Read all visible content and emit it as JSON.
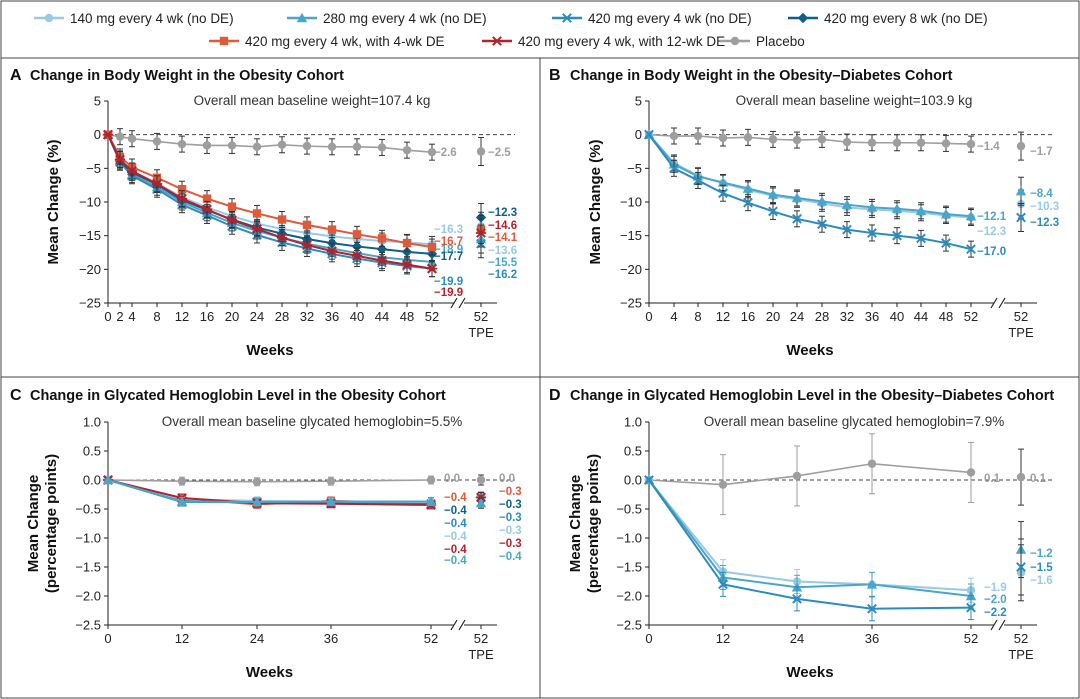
{
  "legend": {
    "series": [
      {
        "name": "140 mg every 4 wk (no DE)",
        "color": "#9ac9e6",
        "marker": "circle"
      },
      {
        "name": "280 mg every 4 wk (no DE)",
        "color": "#4aa6c9",
        "marker": "triangle"
      },
      {
        "name": "420 mg every 4 wk (no DE)",
        "color": "#2b8cbe",
        "marker": "x"
      },
      {
        "name": "420 mg every 8 wk (no DE)",
        "color": "#0e5f8a",
        "marker": "diamond"
      },
      {
        "name": "420 mg every 4 wk, with 4-wk DE",
        "color": "#dd5a3b",
        "marker": "square"
      },
      {
        "name": "420 mg every 4 wk, with 12-wk DE",
        "color": "#b2232e",
        "marker": "star"
      },
      {
        "name": "Placebo",
        "color": "#9e9e9e",
        "marker": "circle"
      }
    ]
  },
  "chart_data": [
    {
      "panel": "A",
      "title": "Change in Body Weight in the Obesity Cohort",
      "subtitle": "Overall mean baseline weight=107.4 kg",
      "type": "line",
      "xlabel": "Weeks",
      "ylabel": "Mean Change (%)",
      "x_ticks": [
        "0",
        "2",
        "4",
        "8",
        "12",
        "16",
        "20",
        "24",
        "28",
        "32",
        "36",
        "40",
        "44",
        "48",
        "52"
      ],
      "extra_tick": [
        "52",
        "TPE"
      ],
      "ylim": [
        -25,
        5
      ],
      "y_ticks": [
        "5",
        "0",
        "-5",
        "-10",
        "-15",
        "-20",
        "-25"
      ],
      "x": [
        0,
        2,
        4,
        8,
        12,
        16,
        20,
        24,
        28,
        32,
        36,
        40,
        44,
        48,
        52
      ],
      "series": [
        {
          "name": "Placebo",
          "values": [
            0,
            -0.3,
            -0.6,
            -1.0,
            -1.4,
            -1.6,
            -1.6,
            -1.8,
            -1.5,
            -1.7,
            -1.8,
            -1.8,
            -1.9,
            -2.3,
            -2.6
          ],
          "end_label": "−2.6",
          "tpe": -2.5,
          "tpe_label": "−2.5"
        },
        {
          "name": "140 mg every 4 wk (no DE)",
          "values": [
            0,
            -3.6,
            -5.4,
            -7.2,
            -9.3,
            -10.8,
            -12.1,
            -13.2,
            -14.0,
            -14.6,
            -15.1,
            -15.5,
            -15.8,
            -16.0,
            -16.3
          ],
          "end_label": "−16.3",
          "tpe": -13.6,
          "tpe_label": "−13.6"
        },
        {
          "name": "280 mg every 4 wk (no DE)",
          "values": [
            0,
            -3.9,
            -5.9,
            -7.8,
            -10.0,
            -11.6,
            -13.1,
            -14.3,
            -15.3,
            -16.2,
            -16.9,
            -17.6,
            -18.2,
            -18.6,
            -18.9
          ],
          "end_label": "−18.9",
          "tpe": -15.5,
          "tpe_label": "−15.5"
        },
        {
          "name": "420 mg every 4 wk (no DE)",
          "values": [
            0,
            -4.1,
            -6.1,
            -8.1,
            -10.4,
            -12.0,
            -13.6,
            -14.9,
            -16.0,
            -16.9,
            -17.7,
            -18.4,
            -19.0,
            -19.5,
            -19.9
          ],
          "end_label": "−19.9",
          "tpe": -16.2,
          "tpe_label": "−16.2"
        },
        {
          "name": "420 mg every 8 wk (no DE)",
          "values": [
            0,
            -3.9,
            -5.6,
            -7.4,
            -9.7,
            -11.2,
            -12.6,
            -13.8,
            -14.7,
            -15.5,
            -16.1,
            -16.6,
            -17.0,
            -17.4,
            -17.7
          ],
          "end_label": "−17.7",
          "tpe": -12.3,
          "tpe_label": "−12.3"
        },
        {
          "name": "420 mg every 4 wk, with 4-wk DE",
          "values": [
            0,
            -3.3,
            -4.8,
            -6.4,
            -8.1,
            -9.5,
            -10.7,
            -11.7,
            -12.6,
            -13.4,
            -14.1,
            -14.8,
            -15.4,
            -16.1,
            -16.7
          ],
          "end_label": "−16.7",
          "tpe": -14.1,
          "tpe_label": "−14.1"
        },
        {
          "name": "420 mg every 4 wk, with 12-wk DE",
          "values": [
            0,
            -3.7,
            -5.4,
            -7.3,
            -9.5,
            -11.1,
            -12.7,
            -14.0,
            -15.3,
            -16.4,
            -17.3,
            -18.0,
            -18.7,
            -19.3,
            -19.9
          ],
          "end_label": "−19.9",
          "tpe": -14.6,
          "tpe_label": "−14.6"
        }
      ]
    },
    {
      "panel": "B",
      "title": "Change in Body Weight in the Obesity–Diabetes Cohort",
      "subtitle": "Overall mean baseline weight=103.9 kg",
      "type": "line",
      "xlabel": "Weeks",
      "ylabel": "Mean Change (%)",
      "x_ticks": [
        "0",
        "4",
        "8",
        "12",
        "16",
        "20",
        "24",
        "28",
        "32",
        "36",
        "40",
        "44",
        "48",
        "52"
      ],
      "extra_tick": [
        "52",
        "TPE"
      ],
      "ylim": [
        -25,
        5
      ],
      "y_ticks": [
        "5",
        "0",
        "-5",
        "-10",
        "-15",
        "-20",
        "-25"
      ],
      "x": [
        0,
        4,
        8,
        12,
        16,
        20,
        24,
        28,
        32,
        36,
        40,
        44,
        48,
        52
      ],
      "series": [
        {
          "name": "Placebo",
          "values": [
            0,
            -0.2,
            -0.2,
            -0.5,
            -0.4,
            -0.7,
            -0.8,
            -0.7,
            -1.1,
            -1.2,
            -1.2,
            -1.2,
            -1.3,
            -1.4
          ],
          "end_label": "−1.4",
          "tpe": -1.7,
          "tpe_label": "−1.7"
        },
        {
          "name": "140 mg every 4 wk (no DE)",
          "values": [
            0,
            -4.2,
            -6.1,
            -7.2,
            -8.2,
            -9.1,
            -9.6,
            -10.2,
            -10.8,
            -11.1,
            -11.3,
            -11.6,
            -12.0,
            -12.3
          ],
          "end_label": "−12.3",
          "tpe": -10.3,
          "tpe_label": "−10.3"
        },
        {
          "name": "280 mg every 4 wk (no DE)",
          "values": [
            0,
            -4.4,
            -6.2,
            -7.1,
            -8.0,
            -8.9,
            -9.4,
            -9.9,
            -10.4,
            -10.8,
            -11.0,
            -11.3,
            -11.8,
            -12.1
          ],
          "end_label": "−12.1",
          "tpe": -8.4,
          "tpe_label": "−8.4"
        },
        {
          "name": "420 mg every 4 wk (no DE)",
          "values": [
            0,
            -5.0,
            -6.8,
            -8.7,
            -10.1,
            -11.4,
            -12.5,
            -13.3,
            -14.1,
            -14.6,
            -15.0,
            -15.4,
            -16.1,
            -17.0
          ],
          "end_label": "−17.0",
          "tpe": -12.3,
          "tpe_label": "−12.3"
        }
      ]
    },
    {
      "panel": "C",
      "title": "Change in Glycated Hemoglobin Level in the Obesity Cohort",
      "subtitle": "Overall mean baseline glycated hemoglobin=5.5%",
      "type": "line",
      "xlabel": "Weeks",
      "ylabel": "Mean Change (percentage points)",
      "x_ticks": [
        "0",
        "12",
        "24",
        "36",
        "52"
      ],
      "extra_tick": [
        "52",
        "TPE"
      ],
      "ylim": [
        -2.5,
        1.0
      ],
      "y_ticks": [
        "1.0",
        "0.5",
        "0.0",
        "-0.5",
        "-1.0",
        "-1.5",
        "-2.0",
        "-2.5"
      ],
      "x": [
        0,
        12,
        24,
        36,
        52
      ],
      "series": [
        {
          "name": "Placebo",
          "values": [
            0,
            -0.02,
            -0.03,
            -0.02,
            0.0
          ],
          "end_label": "0.0",
          "tpe": 0.0,
          "tpe_label": "0.0"
        },
        {
          "name": "420 mg every 4 wk, with 4-wk DE",
          "values": [
            0,
            -0.32,
            -0.42,
            -0.36,
            -0.4
          ],
          "end_label": "−0.4",
          "tpe": -0.3,
          "tpe_label": "−0.3"
        },
        {
          "name": "420 mg every 8 wk (no DE)",
          "values": [
            0,
            -0.34,
            -0.37,
            -0.39,
            -0.4
          ],
          "end_label": "−0.4",
          "tpe": -0.3,
          "tpe_label": "−0.3"
        },
        {
          "name": "420 mg every 4 wk (no DE)",
          "values": [
            0,
            -0.38,
            -0.38,
            -0.4,
            -0.42
          ],
          "end_label": "−0.4",
          "tpe": -0.3,
          "tpe_label": "−0.3"
        },
        {
          "name": "140 mg every 4 wk (no DE)",
          "values": [
            0,
            -0.33,
            -0.36,
            -0.37,
            -0.38
          ],
          "end_label": "−0.4",
          "tpe": -0.3,
          "tpe_label": "−0.3"
        },
        {
          "name": "420 mg every 4 wk, with 12-wk DE",
          "values": [
            0,
            -0.31,
            -0.4,
            -0.41,
            -0.43
          ],
          "end_label": "−0.4",
          "tpe": -0.3,
          "tpe_label": "−0.3"
        },
        {
          "name": "280 mg every 4 wk (no DE)",
          "values": [
            0,
            -0.37,
            -0.38,
            -0.37,
            -0.37
          ],
          "end_label": "−0.4",
          "tpe": -0.4,
          "tpe_label": "−0.4"
        }
      ]
    },
    {
      "panel": "D",
      "title": "Change in Glycated Hemoglobin Level in the Obesity–Diabetes Cohort",
      "subtitle": "Overall mean baseline glycated hemoglobin=7.9%",
      "type": "line",
      "xlabel": "Weeks",
      "ylabel": "Mean Change (percentage points)",
      "x_ticks": [
        "0",
        "12",
        "24",
        "36",
        "52"
      ],
      "extra_tick": [
        "52",
        "TPE"
      ],
      "ylim": [
        -2.5,
        1.0
      ],
      "y_ticks": [
        "1.0",
        "0.5",
        "0.0",
        "-0.5",
        "-1.0",
        "-1.5",
        "-2.0",
        "-2.5"
      ],
      "x": [
        0,
        12,
        24,
        36,
        52
      ],
      "series": [
        {
          "name": "Placebo",
          "values": [
            0,
            -0.08,
            0.07,
            0.28,
            0.13
          ],
          "end_label": "0.1",
          "tpe": 0.05,
          "tpe_label": "0.1"
        },
        {
          "name": "140 mg every 4 wk (no DE)",
          "values": [
            0,
            -1.58,
            -1.75,
            -1.8,
            -1.9
          ],
          "end_label": "−1.9",
          "tpe": -1.6,
          "tpe_label": "−1.6"
        },
        {
          "name": "280 mg every 4 wk (no DE)",
          "values": [
            0,
            -1.68,
            -1.85,
            -1.8,
            -2.0
          ],
          "end_label": "−2.0",
          "tpe": -1.2,
          "tpe_label": "−1.2"
        },
        {
          "name": "420 mg every 4 wk (no DE)",
          "values": [
            0,
            -1.8,
            -2.05,
            -2.22,
            -2.2
          ],
          "end_label": "−2.2",
          "tpe": -1.5,
          "tpe_label": "−1.5"
        }
      ]
    }
  ]
}
